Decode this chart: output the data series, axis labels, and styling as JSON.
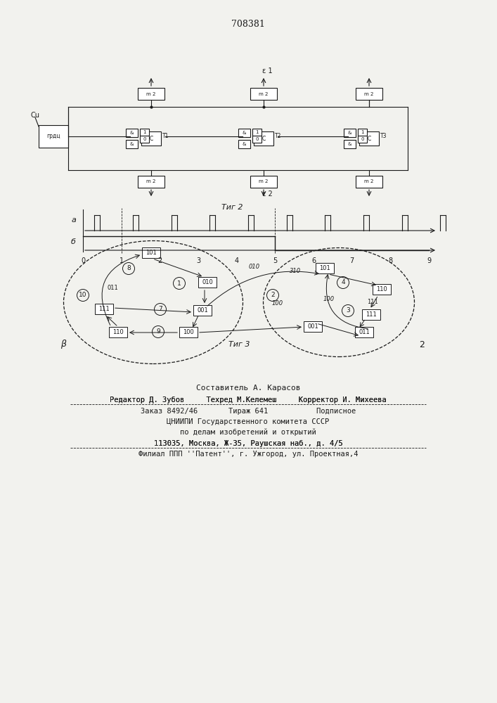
{
  "title_number": "708381",
  "fig2_label": "Τиг 2",
  "fig3_label": "Τиг 3",
  "timing_label_a": "a",
  "timing_label_b": "б",
  "Cu_label": "Cu",
  "grdc_label": "грдц",
  "T1_label": "T1",
  "T2_label": "T2",
  "T3_label": "T3",
  "m2_label": "m 2",
  "E1_label": "ε 1",
  "E2_label": "ε 2",
  "footer_line0": "Составитель А. Карасов",
  "footer_line1": "Редактор Д. Зубов     Техред М.Келемеш     Корректор И. Михеева",
  "footer_line2": "Заказ 8492/46       Тираж 641           Подписное",
  "footer_line3": "ЦНИИПИ Государственного комитета СССР",
  "footer_line4": "по делам изобретений и открытий",
  "footer_line5": "113035, Москва, Ж-35, Раушская наб., д. 4/5",
  "footer_line6": "Филиал ППП ''Патент'', г. Ужгород, ул. Проектная,4",
  "bg_color": "#f2f2ee",
  "line_color": "#1a1a1a"
}
